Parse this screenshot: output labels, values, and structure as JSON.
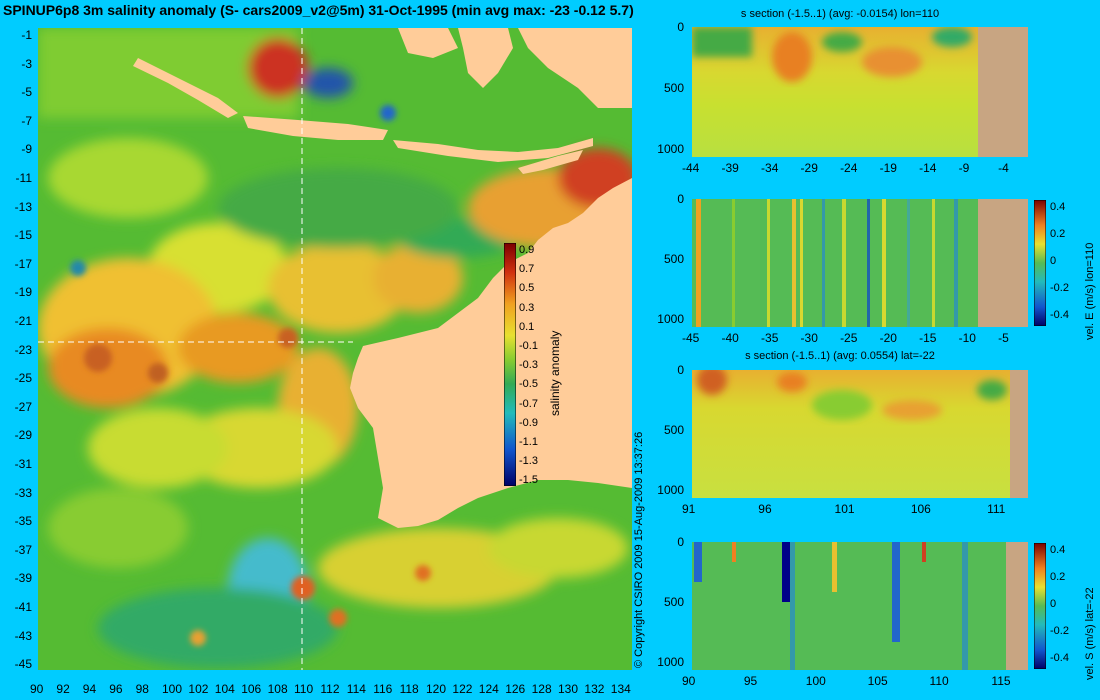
{
  "header": {
    "title": "SPINUP6p8 3m salinity anomaly (S- cars2009_v2@5m) 31-Oct-1995 (min avg max: -23 -0.12 5.7)"
  },
  "main_map": {
    "lat_ticks": [
      "-1",
      "-3",
      "-5",
      "-7",
      "-9",
      "-11",
      "-13",
      "-15",
      "-17",
      "-19",
      "-21",
      "-23",
      "-25",
      "-27",
      "-29",
      "-31",
      "-33",
      "-35",
      "-37",
      "-39",
      "-41",
      "-43",
      "-45"
    ],
    "lon_ticks": [
      "90",
      "92",
      "94",
      "96",
      "98",
      "100",
      "102",
      "104",
      "106",
      "108",
      "110",
      "112",
      "114",
      "116",
      "118",
      "120",
      "122",
      "124",
      "126",
      "128",
      "130",
      "132",
      "134"
    ],
    "section_lon": "110",
    "section_lat": "-22",
    "colorbar": {
      "label": "salinity anomaly",
      "ticks": [
        "0.9",
        "0.7",
        "0.5",
        "0.3",
        "0.1",
        "-0.1",
        "-0.3",
        "-0.5",
        "-0.7",
        "-0.9",
        "-1.1",
        "-1.3",
        "-1.5"
      ]
    }
  },
  "watermark": "© Copyright CSIRO 2009  15-Aug-2009 13:37:26",
  "panels": [
    {
      "title": "s section (-1.5..1) (avg: -0.0154) lon=110",
      "x_ticks": [
        "-44",
        "-39",
        "-34",
        "-29",
        "-24",
        "-19",
        "-14",
        "-9",
        "-4"
      ],
      "y_ticks": [
        "0",
        "500",
        "1000"
      ]
    },
    {
      "title": "",
      "x_ticks": [
        "-45",
        "-40",
        "-35",
        "-30",
        "-25",
        "-20",
        "-15",
        "-10",
        "-5"
      ],
      "y_ticks": [
        "0",
        "500",
        "1000"
      ],
      "colorbar": {
        "label": "vel. E (m/s) lon=110",
        "ticks": [
          "0.4",
          "0.2",
          "0",
          "-0.2",
          "-0.4"
        ]
      }
    },
    {
      "title": "s section (-1.5..1) (avg: 0.0554) lat=-22",
      "x_ticks": [
        "91",
        "96",
        "101",
        "106",
        "111"
      ],
      "y_ticks": [
        "0",
        "500",
        "1000"
      ]
    },
    {
      "title": "",
      "x_ticks": [
        "90",
        "95",
        "100",
        "105",
        "110",
        "115"
      ],
      "y_ticks": [
        "0",
        "500",
        "1000"
      ],
      "colorbar": {
        "label": "vel. S (m/s) lat=-22",
        "ticks": [
          "0.4",
          "0.2",
          "0",
          "-0.2",
          "-0.4"
        ]
      }
    }
  ],
  "colors": {
    "background": "#00ccff",
    "land": "#ffcc99",
    "section_land": "#c8a582",
    "ocean_base": "#55bb33"
  }
}
